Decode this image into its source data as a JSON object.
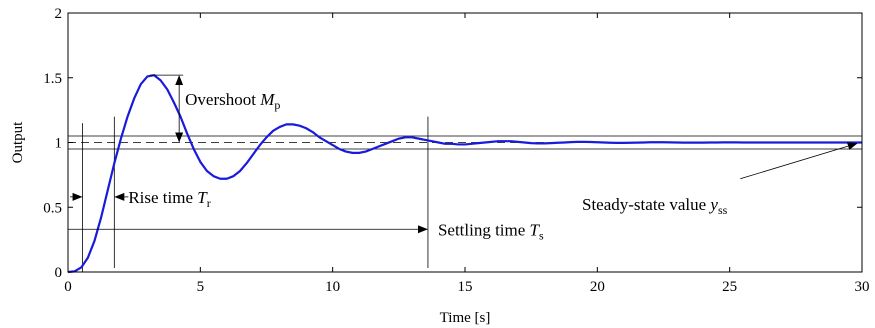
{
  "chart_data": {
    "type": "line",
    "title": "",
    "xlabel": "Time [s]",
    "ylabel": "Output",
    "xlim": [
      0,
      30
    ],
    "ylim": [
      0,
      2
    ],
    "xticks": [
      0,
      5,
      10,
      15,
      20,
      25,
      30
    ],
    "yticks": [
      0,
      0.5,
      1,
      1.5,
      2
    ],
    "xtick_labels": [
      "0",
      "5",
      "10",
      "15",
      "20",
      "25",
      "30"
    ],
    "ytick_labels": [
      "0",
      "0.5",
      "1",
      "1.5",
      "2"
    ],
    "grid": false,
    "legend": "none",
    "series_color": "#1a1adb",
    "steady_state_value": 1,
    "tolerance_band": [
      0.95,
      1.05
    ],
    "series": [
      {
        "x": [
          0,
          0.25,
          0.5,
          0.75,
          1,
          1.25,
          1.5,
          1.75,
          2,
          2.25,
          2.5,
          2.75,
          3,
          3.25,
          3.5,
          3.75,
          4,
          4.25,
          4.5,
          4.75,
          5,
          5.25,
          5.5,
          5.75,
          6,
          6.25,
          6.5,
          6.75,
          7,
          7.25,
          7.5,
          7.75,
          8,
          8.25,
          8.5,
          8.75,
          9,
          9.25,
          9.5,
          9.75,
          10,
          10.25,
          10.5,
          10.75,
          11,
          11.25,
          11.5,
          11.75,
          12,
          12.25,
          12.5,
          12.75,
          13,
          13.25,
          13.5,
          13.75,
          14,
          14.25,
          14.5,
          14.75,
          15,
          15.25,
          15.5,
          15.75,
          16,
          16.25,
          16.5,
          16.75,
          17,
          17.25,
          17.5,
          17.75,
          18,
          18.25,
          18.5,
          18.75,
          19,
          19.25,
          19.5,
          19.75,
          20,
          20.25,
          20.5,
          20.75,
          21,
          21.25,
          21.5,
          21.75,
          22,
          22.25,
          22.5,
          22.75,
          23,
          23.25,
          23.5,
          23.75,
          24,
          24.25,
          24.5,
          24.75,
          25,
          25.25,
          25.5,
          25.75,
          26,
          26.25,
          26.5,
          26.75,
          27,
          27.25,
          27.5,
          27.75,
          28,
          28.25,
          28.5,
          28.75,
          29,
          29.25,
          29.5,
          29.75,
          30
        ],
        "y": [
          0,
          0.005,
          0.035,
          0.11,
          0.24,
          0.42,
          0.63,
          0.84,
          1.03,
          1.2,
          1.34,
          1.45,
          1.51,
          1.52,
          1.48,
          1.41,
          1.31,
          1.2,
          1.07,
          0.95,
          0.85,
          0.78,
          0.74,
          0.72,
          0.72,
          0.74,
          0.78,
          0.84,
          0.91,
          0.98,
          1.04,
          1.09,
          1.12,
          1.14,
          1.14,
          1.13,
          1.11,
          1.08,
          1.04,
          1.01,
          0.98,
          0.95,
          0.93,
          0.92,
          0.92,
          0.93,
          0.95,
          0.97,
          0.99,
          1.01,
          1.03,
          1.04,
          1.04,
          1.03,
          1.02,
          1.01,
          1.0,
          0.99,
          0.99,
          0.985,
          0.985,
          0.99,
          0.995,
          1.0,
          1.005,
          1.01,
          1.01,
          1.01,
          1.005,
          1.0,
          0.995,
          0.993,
          0.993,
          0.995,
          0.998,
          1.0,
          1.003,
          1.005,
          1.005,
          1.004,
          1.002,
          1.0,
          0.998,
          0.997,
          0.997,
          0.998,
          0.999,
          1.0,
          1.002,
          1.002,
          1.002,
          1.001,
          1.0,
          0.999,
          0.999,
          0.999,
          0.999,
          1.0,
          1.0,
          1.001,
          1.001,
          1.001,
          1.0,
          1.0,
          1.0,
          1.0,
          1.0,
          1.0,
          1.0,
          1.0,
          1.0,
          1.0,
          1.0,
          1.0,
          1.0,
          1.0,
          1.0,
          1.0,
          1.0,
          1.0,
          1.0
        ]
      }
    ],
    "annotations": {
      "overshoot": {
        "text": "Overshoot ",
        "symbol": "M",
        "subscript": "p",
        "x": 4.2,
        "y_top": 1.52,
        "y_bottom": 1.0
      },
      "rise_time": {
        "text": "Rise time ",
        "symbol": "T",
        "subscript": "r",
        "t_start": 0.55,
        "t_end": 1.75,
        "y": 0.58
      },
      "settling_time": {
        "text": "Settling time ",
        "symbol": "T",
        "subscript": "s",
        "t_end": 13.6,
        "y": 0.33
      },
      "steady_state": {
        "text": "Steady-state value ",
        "symbol": "y",
        "subscript": "ss",
        "arrow_to_x": 29.8,
        "arrow_to_y": 1.0
      }
    }
  }
}
